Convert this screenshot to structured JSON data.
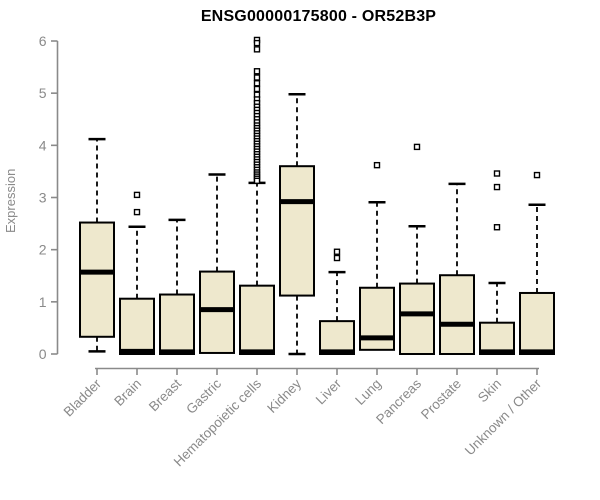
{
  "chart_data": {
    "type": "boxplot",
    "title": "ENSG00000175800 - OR52B3P",
    "ylabel": "Expression",
    "xlabel": "",
    "ylim": [
      0,
      6
    ],
    "yticks": [
      0,
      1,
      2,
      3,
      4,
      5,
      6
    ],
    "grid": false,
    "legend": "none",
    "categories": [
      "Bladder",
      "Brain",
      "Breast",
      "Gastric",
      "Hematopoietic cells",
      "Kidney",
      "Liver",
      "Lung",
      "Pancreas",
      "Prostate",
      "Skin",
      "Unknown / Other"
    ],
    "series": [
      {
        "name": "Bladder",
        "low": 0.05,
        "q1": 0.33,
        "median": 1.57,
        "q3": 2.52,
        "high": 4.12,
        "outliers": []
      },
      {
        "name": "Brain",
        "low": 0.0,
        "q1": 0.0,
        "median": 0.05,
        "q3": 1.06,
        "high": 2.44,
        "outliers": [
          2.72,
          3.05
        ]
      },
      {
        "name": "Breast",
        "low": 0.0,
        "q1": 0.0,
        "median": 0.04,
        "q3": 1.14,
        "high": 2.57,
        "outliers": []
      },
      {
        "name": "Gastric",
        "low": 0.02,
        "q1": 0.02,
        "median": 0.85,
        "q3": 1.58,
        "high": 3.44,
        "outliers": []
      },
      {
        "name": "Hematopoietic cells",
        "low": 0.0,
        "q1": 0.0,
        "median": 0.04,
        "q3": 1.31,
        "high": 3.28,
        "outliers": [
          6.02,
          5.96,
          5.84,
          5.42,
          5.3,
          5.19,
          5.08,
          4.97,
          4.88,
          4.81,
          4.74,
          4.68,
          4.62,
          4.56,
          4.5,
          4.44,
          4.38,
          4.33,
          4.28,
          4.23,
          4.18,
          4.13,
          4.08,
          4.03,
          3.98,
          3.93,
          3.88,
          3.83,
          3.78,
          3.73,
          3.68,
          3.63,
          3.58,
          3.53,
          3.48,
          3.44,
          3.4,
          3.36,
          3.32
        ]
      },
      {
        "name": "Kidney",
        "low": 0.0,
        "q1": 1.12,
        "median": 2.92,
        "q3": 3.6,
        "high": 4.98,
        "outliers": []
      },
      {
        "name": "Liver",
        "low": 0.0,
        "q1": 0.0,
        "median": 0.04,
        "q3": 0.63,
        "high": 1.57,
        "outliers": [
          1.84,
          1.96
        ]
      },
      {
        "name": "Lung",
        "low": 0.02,
        "q1": 0.08,
        "median": 0.31,
        "q3": 1.27,
        "high": 2.91,
        "outliers": [
          3.62
        ]
      },
      {
        "name": "Pancreas",
        "low": 0.0,
        "q1": 0.0,
        "median": 0.77,
        "q3": 1.35,
        "high": 2.45,
        "outliers": [
          3.97
        ]
      },
      {
        "name": "Prostate",
        "low": 0.0,
        "q1": 0.0,
        "median": 0.57,
        "q3": 1.51,
        "high": 3.26,
        "outliers": []
      },
      {
        "name": "Skin",
        "low": 0.0,
        "q1": 0.0,
        "median": 0.04,
        "q3": 0.6,
        "high": 1.36,
        "outliers": [
          2.43,
          3.2,
          3.46
        ]
      },
      {
        "name": "Unknown / Other",
        "low": 0.0,
        "q1": 0.0,
        "median": 0.04,
        "q3": 1.17,
        "high": 2.86,
        "outliers": [
          3.43
        ]
      }
    ],
    "colors": {
      "box_fill": "#eee8cd",
      "box_border": "#000000",
      "median": "#000000",
      "whisker": "#000000",
      "outlier_stroke": "#000000",
      "outlier_fill": "#ffffff",
      "axis": "#8a8a8a",
      "tick_label": "#8a8a8a",
      "title": "#000000",
      "background": "#ffffff"
    }
  }
}
